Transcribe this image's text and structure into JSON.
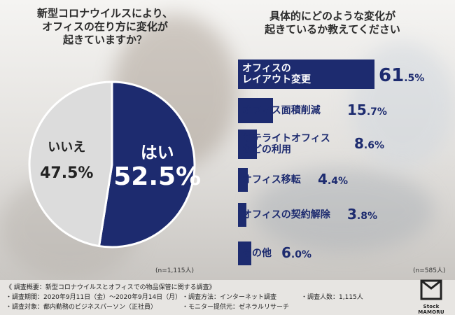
{
  "left_panel": {
    "title_lines": [
      "新型コロナウイルスにより、",
      "オフィスの在り方に変化が",
      "起きていますか？"
    ],
    "n_note": "(n=1,115人)"
  },
  "right_panel": {
    "title_lines": [
      "具体的にどのような変化が",
      "起きているか教えてください"
    ],
    "n_note": "(n=585人)"
  },
  "colors": {
    "primary": "#1d2b6f",
    "gray_slice": "#dcdcdc",
    "white": "#ffffff"
  },
  "chart_data": [
    {
      "type": "pie",
      "slices": [
        {
          "label": "はい",
          "value": 52.5,
          "display": "52.5%",
          "color": "#1d2b6f"
        },
        {
          "label": "いいえ",
          "value": 47.5,
          "display": "47.5%",
          "color": "#dcdcdc"
        }
      ]
    },
    {
      "type": "bar",
      "orientation": "horizontal",
      "categories": [
        "オフィスのレイアウト変更",
        "オフィス面積削減",
        "サテライトオフィスなどの利用",
        "オフィス移転",
        "オフィスの契約解除",
        "その他"
      ],
      "category_lines": [
        [
          "オフィスの",
          "レイアウト変更"
        ],
        [
          "オフィス面積削減"
        ],
        [
          "サテライトオフィス",
          "などの利用"
        ],
        [
          "オフィス移転"
        ],
        [
          "オフィスの契約解除"
        ],
        [
          "その他"
        ]
      ],
      "values": [
        61.5,
        15.7,
        8.6,
        4.4,
        3.8,
        6.0
      ],
      "value_labels": [
        {
          "int": "61",
          "dec": ".5",
          "unit": "%"
        },
        {
          "int": "15",
          "dec": ".7",
          "unit": "%"
        },
        {
          "int": "8",
          "dec": ".6",
          "unit": "%"
        },
        {
          "int": "4",
          "dec": ".4",
          "unit": "%"
        },
        {
          "int": "3",
          "dec": ".8",
          "unit": "%"
        },
        {
          "int": "6",
          "dec": ".0",
          "unit": "%"
        }
      ]
    }
  ],
  "footer": {
    "summary": "《 調査概要：新型コロナウイルスとオフィスでの物品保管に関する調査》",
    "period": "・調査期間：2020年9月11日（金）～2020年9月14日（月）",
    "method": "・調査方法：インターネット調査",
    "respondents": "・調査人数：1,115人",
    "target": "・調査対象：都内勤務のビジネスパーソン（正社員）",
    "provider": "・モニター提供元：ゼネラルリサーチ"
  },
  "logo": {
    "text": "Stock MAMORU",
    "icon": "box-logo-icon"
  }
}
